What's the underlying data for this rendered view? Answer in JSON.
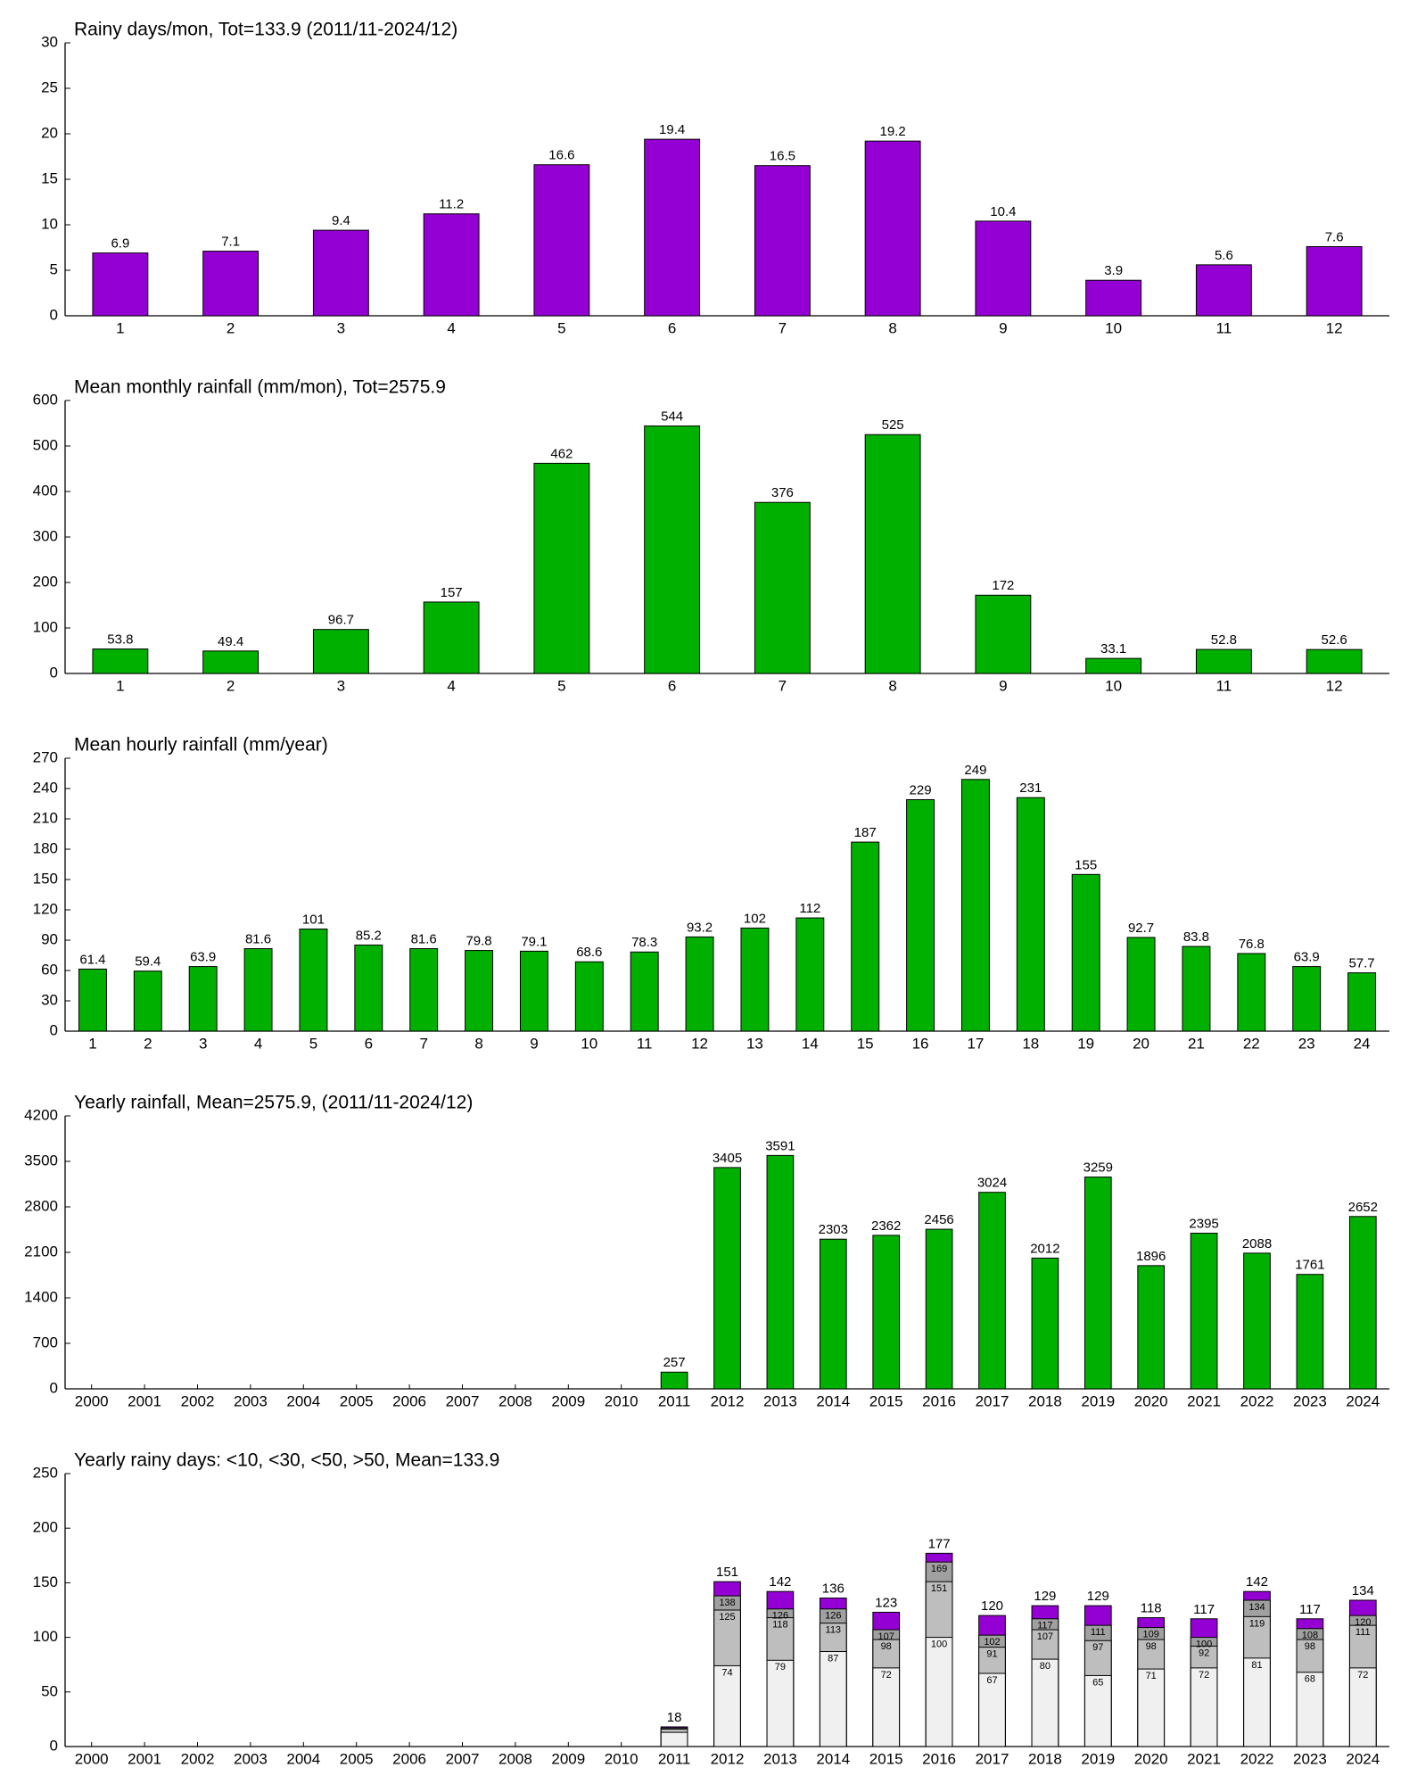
{
  "chart_data": [
    {
      "type": "bar",
      "title": "Rainy days/mon, Tot=133.9 (2011/11-2024/12)",
      "categories": [
        "1",
        "2",
        "3",
        "4",
        "5",
        "6",
        "7",
        "8",
        "9",
        "10",
        "11",
        "12"
      ],
      "values": [
        6.9,
        7.1,
        9.4,
        11.2,
        16.6,
        19.4,
        16.5,
        19.2,
        10.4,
        3.9,
        5.6,
        7.6
      ],
      "color": "#9400d3",
      "ylim": [
        0,
        30
      ],
      "yticks": [
        0,
        5,
        10,
        15,
        20,
        25,
        30
      ]
    },
    {
      "type": "bar",
      "title": "Mean monthly rainfall (mm/mon), Tot=2575.9",
      "categories": [
        "1",
        "2",
        "3",
        "4",
        "5",
        "6",
        "7",
        "8",
        "9",
        "10",
        "11",
        "12"
      ],
      "values": [
        53.8,
        49.4,
        96.7,
        157,
        462,
        544,
        376,
        525,
        172,
        33.1,
        52.8,
        52.6
      ],
      "color": "#00b000",
      "ylim": [
        0,
        600
      ],
      "yticks": [
        0,
        100,
        200,
        300,
        400,
        500,
        600
      ]
    },
    {
      "type": "bar",
      "title": "Mean hourly rainfall (mm/year)",
      "categories": [
        "1",
        "2",
        "3",
        "4",
        "5",
        "6",
        "7",
        "8",
        "9",
        "10",
        "11",
        "12",
        "13",
        "14",
        "15",
        "16",
        "17",
        "18",
        "19",
        "20",
        "21",
        "22",
        "23",
        "24"
      ],
      "values": [
        61.4,
        59.4,
        63.9,
        81.6,
        101,
        85.2,
        81.6,
        79.8,
        79.1,
        68.6,
        78.3,
        93.2,
        102,
        112,
        187,
        229,
        249,
        231,
        155,
        92.7,
        83.8,
        76.8,
        63.9,
        57.7
      ],
      "color": "#00b000",
      "ylim": [
        0,
        270
      ],
      "yticks": [
        0,
        30,
        60,
        90,
        120,
        150,
        180,
        210,
        240,
        270
      ]
    },
    {
      "type": "bar",
      "title": "Yearly rainfall, Mean=2575.9, (2011/11-2024/12)",
      "categories": [
        "2000",
        "2001",
        "2002",
        "2003",
        "2004",
        "2005",
        "2006",
        "2007",
        "2008",
        "2009",
        "2010",
        "2011",
        "2012",
        "2013",
        "2014",
        "2015",
        "2016",
        "2017",
        "2018",
        "2019",
        "2020",
        "2021",
        "2022",
        "2023",
        "2024"
      ],
      "values": [
        null,
        null,
        null,
        null,
        null,
        null,
        null,
        null,
        null,
        null,
        null,
        257,
        3405,
        3591,
        2303,
        2362,
        2456,
        3024,
        2012,
        3259,
        1896,
        2395,
        2088,
        1761,
        2652
      ],
      "color": "#00b000",
      "ylim": [
        0,
        4200
      ],
      "yticks": [
        0,
        700,
        1400,
        2100,
        2800,
        3500,
        4200
      ]
    },
    {
      "type": "bar",
      "barmode": "overlay",
      "title": "Yearly rainy days: <10, <30, <50, >50, Mean=133.9",
      "categories": [
        "2000",
        "2001",
        "2002",
        "2003",
        "2004",
        "2005",
        "2006",
        "2007",
        "2008",
        "2009",
        "2010",
        "2011",
        "2012",
        "2013",
        "2014",
        "2015",
        "2016",
        "2017",
        "2018",
        "2019",
        "2020",
        "2021",
        "2022",
        "2023",
        "2024"
      ],
      "series": [
        {
          "color": "#f0f0f0",
          "values": [
            null,
            null,
            null,
            null,
            null,
            null,
            null,
            null,
            null,
            null,
            null,
            13,
            74,
            79,
            87,
            72,
            100,
            67,
            80,
            65,
            71,
            72,
            81,
            68,
            72
          ]
        },
        {
          "color": "#bebebe",
          "values": [
            null,
            null,
            null,
            null,
            null,
            null,
            null,
            null,
            null,
            null,
            null,
            16,
            125,
            118,
            113,
            98,
            151,
            91,
            107,
            97,
            98,
            92,
            119,
            98,
            111
          ]
        },
        {
          "color": "#a0a0a0",
          "values": [
            null,
            null,
            null,
            null,
            null,
            null,
            null,
            null,
            null,
            null,
            null,
            17,
            138,
            126,
            126,
            107,
            169,
            102,
            117,
            111,
            109,
            100,
            134,
            108,
            120
          ]
        },
        {
          "color": "#9400d3",
          "values": [
            null,
            null,
            null,
            null,
            null,
            null,
            null,
            null,
            null,
            null,
            null,
            18,
            151,
            142,
            136,
            123,
            177,
            120,
            129,
            129,
            118,
            117,
            142,
            117,
            134
          ]
        }
      ],
      "ylim": [
        0,
        250
      ],
      "yticks": [
        0,
        50,
        100,
        150,
        200,
        250
      ]
    }
  ]
}
